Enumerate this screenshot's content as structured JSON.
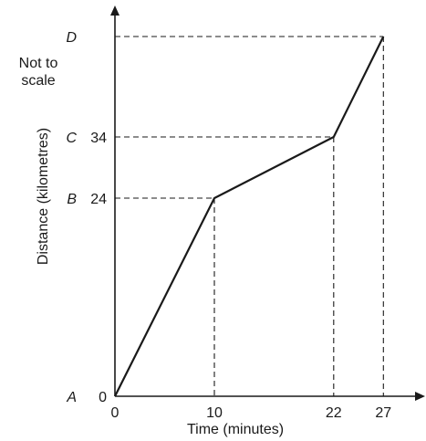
{
  "note": "Not to\nscale",
  "chart_data": {
    "type": "line",
    "xlabel": "Time (minutes)",
    "ylabel": "Distance (kilometres)",
    "x": [
      0,
      10,
      22,
      27
    ],
    "values": [
      0,
      24,
      34,
      50
    ],
    "x_ticks": [
      "0",
      "10",
      "22",
      "27"
    ],
    "y_ticks": [
      {
        "letter": "A",
        "value": "0"
      },
      {
        "letter": "B",
        "value": "24"
      },
      {
        "letter": "C",
        "value": "34"
      },
      {
        "letter": "D",
        "value": ""
      }
    ],
    "grid": false,
    "dashed_guides": true,
    "line_color": "#1a1a1a"
  }
}
